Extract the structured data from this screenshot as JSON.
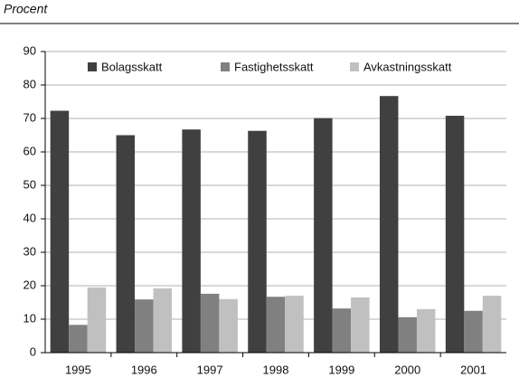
{
  "chart_data": {
    "type": "bar",
    "y_label": "Procent",
    "categories": [
      "1995",
      "1996",
      "1997",
      "1998",
      "1999",
      "2000",
      "2001"
    ],
    "series": [
      {
        "name": "Bolagsskatt",
        "color": "#404040",
        "values": [
          72.3,
          65,
          66.7,
          66.3,
          70.1,
          76.7,
          70.8
        ]
      },
      {
        "name": "Fastighetsskatt",
        "color": "#808080",
        "values": [
          8.3,
          15.9,
          17.6,
          16.7,
          13.2,
          10.6,
          12.5
        ]
      },
      {
        "name": "Avkastningsskatt",
        "color": "#c0c0c0",
        "values": [
          19.5,
          19.2,
          16,
          17,
          16.5,
          13,
          17
        ]
      }
    ],
    "ylim": [
      0,
      90
    ],
    "yticks": [
      0,
      10,
      20,
      30,
      40,
      50,
      60,
      70,
      80,
      90
    ],
    "grid": true
  }
}
